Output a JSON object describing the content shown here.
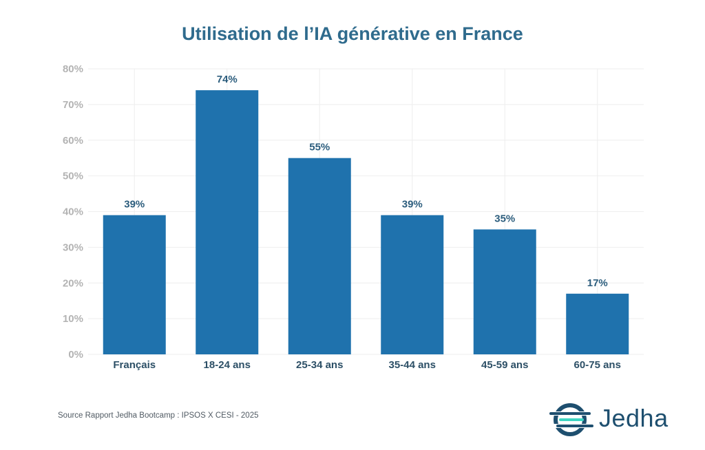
{
  "chart_data": {
    "type": "bar",
    "title": "Utilisation de l’IA générative en France",
    "categories": [
      "Français",
      "18-24 ans",
      "25-34 ans",
      "35-44 ans",
      "45-59 ans",
      "60-75 ans"
    ],
    "values": [
      39,
      74,
      55,
      39,
      35,
      17
    ],
    "data_labels": [
      "39%",
      "74%",
      "55%",
      "39%",
      "35%",
      "17%"
    ],
    "ytick_labels": [
      "0%",
      "10%",
      "20%",
      "30%",
      "40%",
      "50%",
      "60%",
      "70%",
      "80%"
    ],
    "ylim": [
      0,
      80
    ],
    "ytick_step": 10,
    "xlabel": "",
    "ylabel": "",
    "grid": true,
    "bar_color": "#1f72ad",
    "grid_color": "#eeeeee"
  },
  "footer": {
    "source": "Source Rapport Jedha Bootcamp :  IPSOS X CESI - 2025"
  },
  "brand": {
    "name": "Jedha",
    "icon": "jedha-logo-icon",
    "color": "#1e4f6f",
    "accent": "#3fd6c2"
  }
}
